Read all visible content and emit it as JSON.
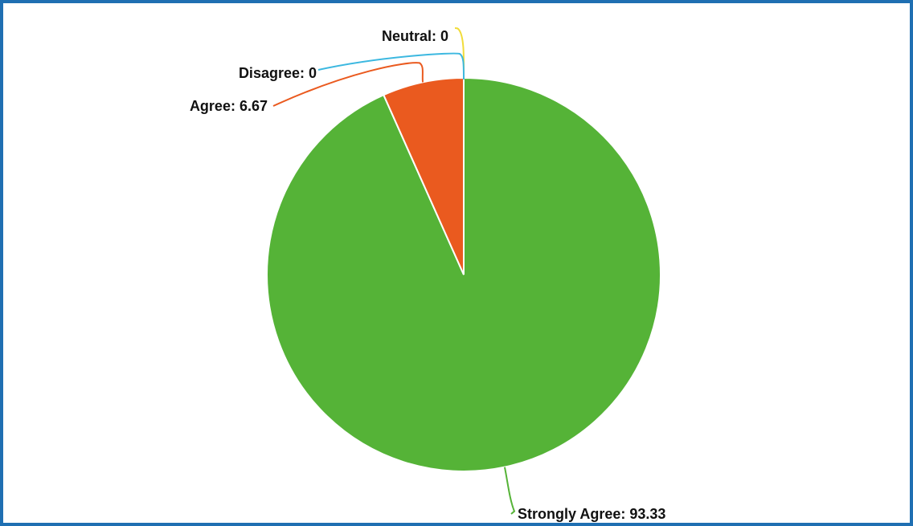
{
  "chart_data": {
    "type": "pie",
    "slices": [
      {
        "label": "Strongly Agree",
        "value": 93.33,
        "color": "#55b337",
        "display": "Strongly Agree: 93.33"
      },
      {
        "label": "Neutral",
        "value": 0,
        "color": "#f1dc3a",
        "display": "Neutral: 0"
      },
      {
        "label": "Disagree",
        "value": 0,
        "color": "#3cb8e0",
        "display": "Disagree: 0"
      },
      {
        "label": "Agree",
        "value": 6.67,
        "color": "#ea5a1f",
        "display": "Agree: 6.67"
      }
    ],
    "start_angle_deg": 0,
    "direction": "clockwise",
    "labels_outside_with_leader_lines": true
  },
  "colors": {
    "border": "#1f6fb2"
  }
}
